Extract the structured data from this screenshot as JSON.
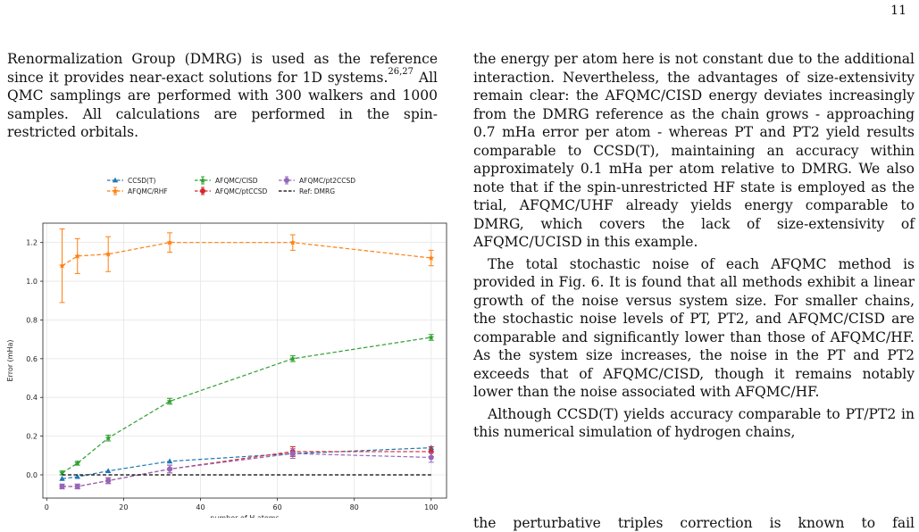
{
  "page_number": "11",
  "left_column": {
    "paragraph": [
      "Renormalization Group (DMRG) is used as the reference since it provides near-exact solutions for 1D systems.",
      "26,27",
      " All QMC samplings are performed with 300 walkers and 1000 samples. All calculations are performed in the spin-restricted orbitals."
    ]
  },
  "right_column": {
    "p1": "the energy per atom here is not constant due to the additional interaction. Nevertheless, the advantages of size-extensivity remain clear: the AFQMC/CISD energy deviates increasingly from the DMRG reference as the chain grows - approaching 0.7 mHa error per atom - whereas PT and PT2 yield results comparable to CCSD(T), maintaining an accuracy within approximately 0.1 mHa per atom relative to DMRG. We also note that if the spin-unrestricted HF state is employed as the trial, AFQMC/UHF already yields energy comparable to DMRG, which covers the lack of size-extensivity of AFQMC/UCISD in this example.",
    "p2": "The total stochastic noise of each AFQMC method is provided in Fig. 6. It is found that all methods exhibit a linear growth of the noise versus system size. For smaller chains, the stochastic noise levels of PT, PT2, and AFQMC/CISD are comparable and significantly lower than those of AFQMC/HF. As the system size increases, the noise in the PT and PT2 exceeds that of AFQMC/CISD, though it remains notably lower than the noise associated with AFQMC/HF.",
    "p3_visible": "Although CCSD(T) yields accuracy comparable to PT/PT2 in this numerical simulation of hydrogen chains,",
    "p3_cut": "the perturbative triples correction is known to fail"
  },
  "chart_data": {
    "type": "line",
    "xlabel": "number of H atoms",
    "ylabel": "Error (mHa)",
    "xlim": [
      -1,
      104
    ],
    "ylim": [
      -0.12,
      1.3
    ],
    "xticks": [
      0,
      20,
      40,
      60,
      80,
      100
    ],
    "yticks": [
      0.0,
      0.2,
      0.4,
      0.6,
      0.8,
      1.0,
      1.2
    ],
    "grid": true,
    "legend_position": "top-center",
    "x": [
      4,
      8,
      16,
      32,
      64,
      100
    ],
    "series": [
      {
        "name": "CCSD(T)",
        "color": "#1f77b4",
        "marker": "triangle",
        "values": [
          -0.02,
          -0.01,
          0.02,
          0.07,
          0.11,
          0.14
        ],
        "errors": null
      },
      {
        "name": "AFQMC/RHF",
        "color": "#ff7f0e",
        "marker": "star",
        "values": [
          1.08,
          1.13,
          1.14,
          1.2,
          1.2,
          1.12
        ],
        "errors": [
          0.19,
          0.09,
          0.09,
          0.05,
          0.04,
          0.04
        ]
      },
      {
        "name": "AFQMC/CISD",
        "color": "#2ca02c",
        "marker": "star",
        "values": [
          0.01,
          0.06,
          0.19,
          0.38,
          0.6,
          0.71
        ],
        "errors": [
          0.01,
          0.01,
          0.015,
          0.015,
          0.015,
          0.015
        ]
      },
      {
        "name": "AFQMC/ptCCSD",
        "color": "#d62728",
        "marker": "circle",
        "values": [
          -0.06,
          -0.06,
          -0.03,
          0.03,
          0.12,
          0.12
        ],
        "errors": [
          0.012,
          0.012,
          0.015,
          0.02,
          0.025,
          0.025
        ]
      },
      {
        "name": "AFQMC/pt2CCSD",
        "color": "#9467bd",
        "marker": "circle",
        "values": [
          -0.06,
          -0.06,
          -0.03,
          0.03,
          0.11,
          0.09
        ],
        "errors": [
          0.012,
          0.012,
          0.015,
          0.02,
          0.025,
          0.025
        ]
      },
      {
        "name": "Ref: DMRG",
        "color": "#000000",
        "marker": "none",
        "values": [
          0,
          0,
          0,
          0,
          0,
          0
        ],
        "errors": null
      }
    ]
  }
}
